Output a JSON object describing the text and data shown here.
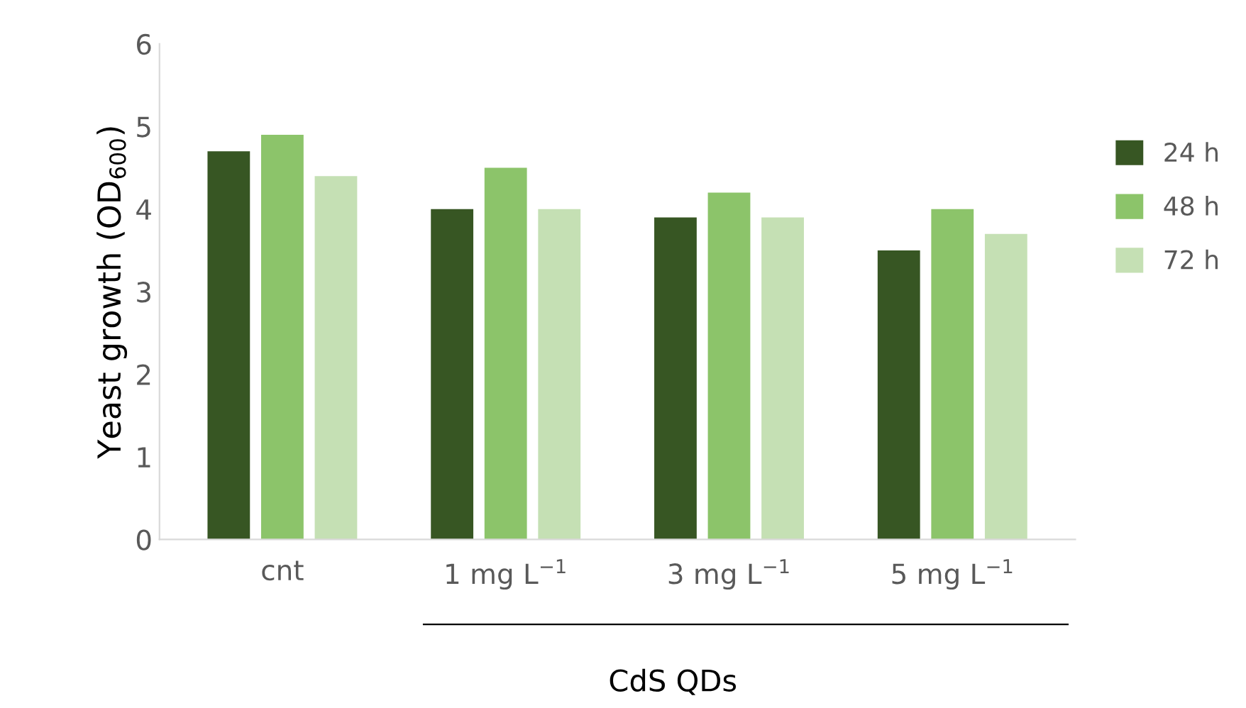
{
  "chart_data": {
    "type": "bar",
    "xlabel": "CdS QDs",
    "ylabel": "Yeast growth (OD$_{600}$)",
    "categories": [
      "cnt",
      "1 mg L$^{−1}$",
      "3 mg L$^{−1}$",
      "5 mg L$^{−1}$"
    ],
    "series": [
      {
        "name": "24 h",
        "color": "#375623",
        "values": [
          4.7,
          4.0,
          3.9,
          3.5
        ]
      },
      {
        "name": "48 h",
        "color": "#8cc46a",
        "values": [
          4.9,
          4.5,
          4.2,
          4.0
        ]
      },
      {
        "name": "72 h",
        "color": "#c5e0b4",
        "values": [
          4.4,
          4.0,
          3.9,
          3.7
        ]
      }
    ],
    "ylim": [
      0,
      6
    ],
    "yticks": [
      0,
      1,
      2,
      3,
      4,
      5,
      6
    ],
    "grid": false,
    "legend": "right"
  }
}
